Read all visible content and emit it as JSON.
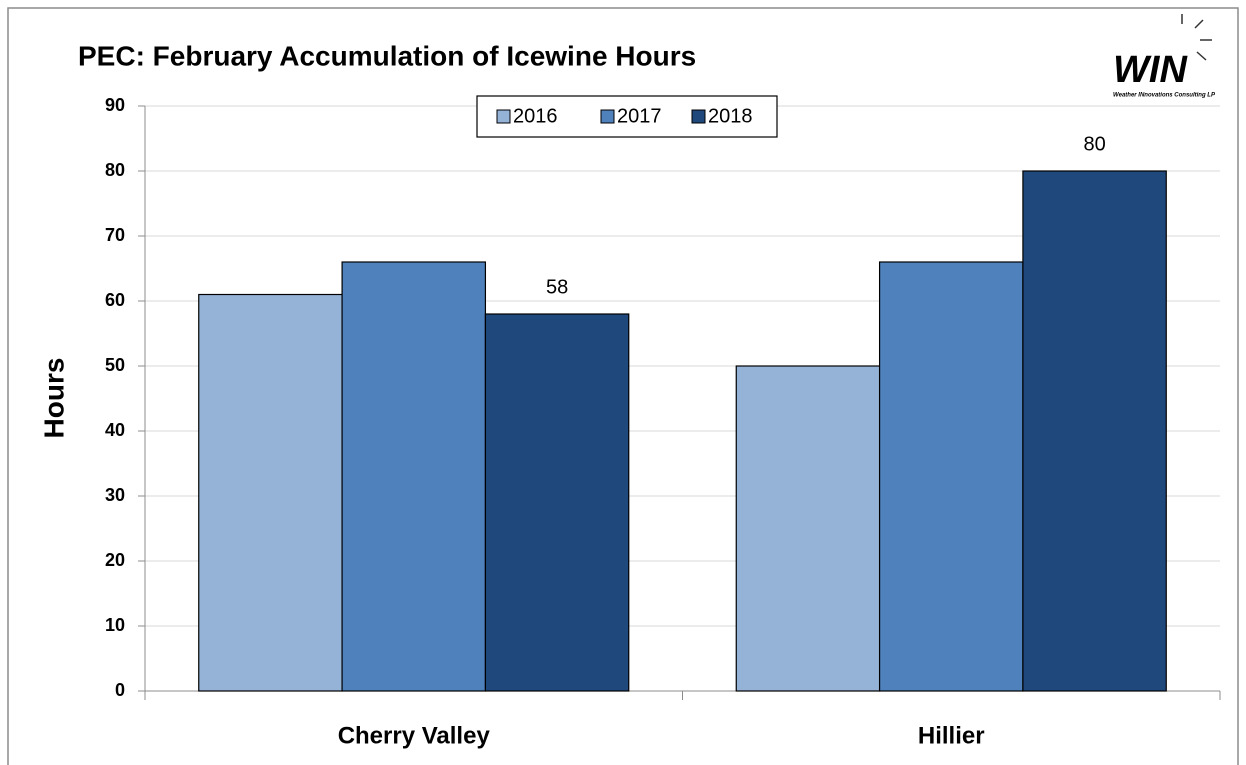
{
  "chart_data": {
    "type": "bar",
    "title": "PEC: February Accumulation of Icewine Hours",
    "y_label": "Hours",
    "categories": [
      "Cherry Valley",
      "Hillier"
    ],
    "series": [
      {
        "name": "2016",
        "color": "#95b3d7",
        "values": [
          61,
          50
        ]
      },
      {
        "name": "2017",
        "color": "#4f81bd",
        "values": [
          66,
          66
        ]
      },
      {
        "name": "2018",
        "color": "#1f497d",
        "values": [
          58,
          80
        ],
        "data_labels": true
      }
    ],
    "ylim": [
      0,
      90
    ],
    "yticks": [
      0,
      10,
      20,
      30,
      40,
      50,
      60,
      70,
      80,
      90
    ],
    "grid": true,
    "legend": "top",
    "logo": {
      "text": "WIN",
      "subtitle": "Weather INnovations Consulting LP"
    }
  }
}
